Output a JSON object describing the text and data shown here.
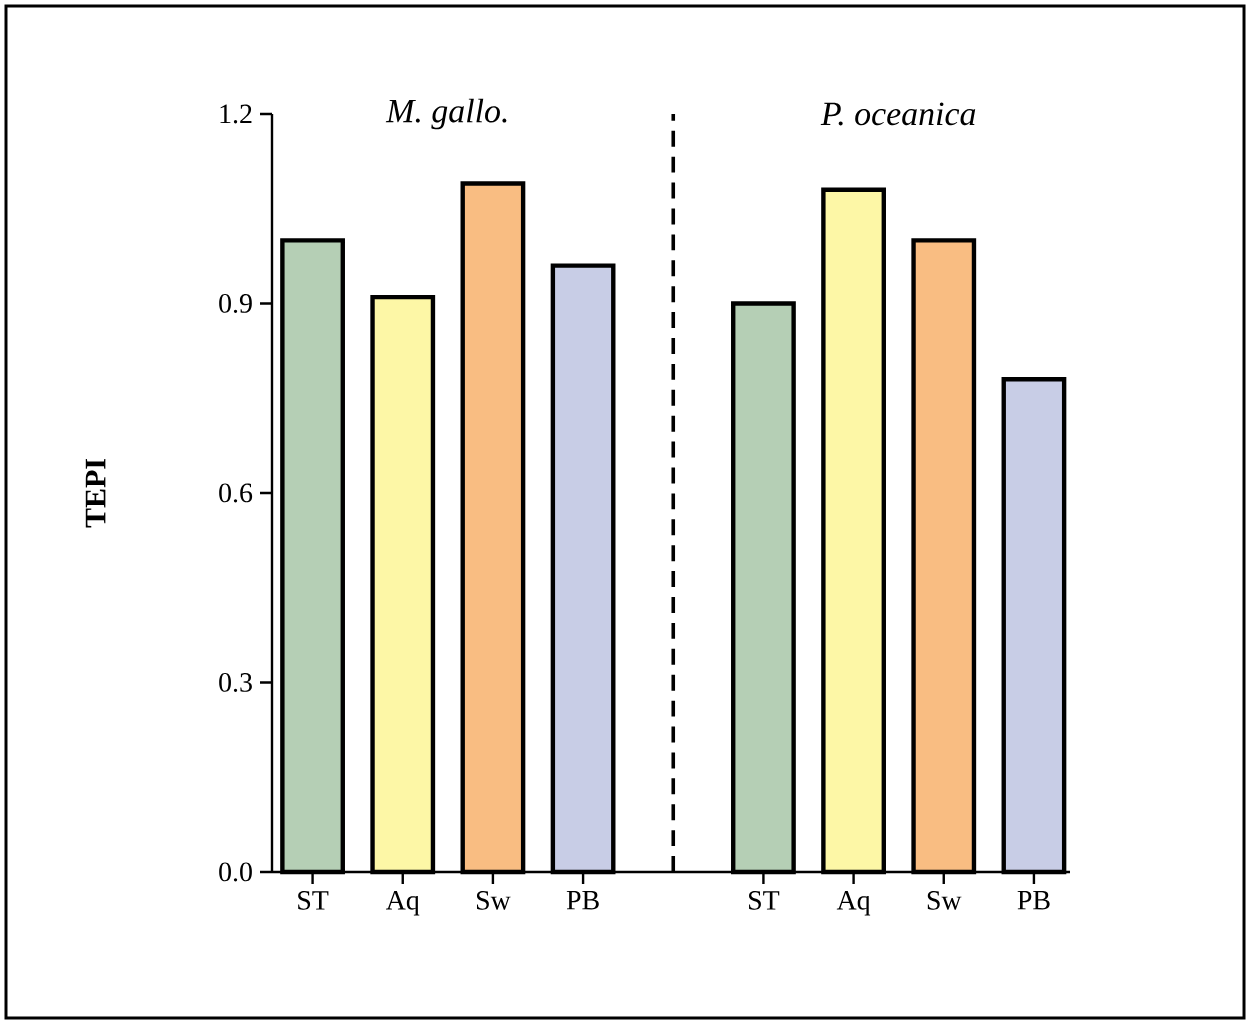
{
  "chart_data": {
    "type": "bar",
    "ylabel": "TEPI",
    "categories": [
      "ST",
      "Aq",
      "Sw",
      "PB",
      null,
      "ST",
      "Aq",
      "Sw",
      "PB"
    ],
    "values": [
      1.0,
      0.91,
      1.09,
      0.96,
      null,
      0.9,
      1.08,
      1.0,
      0.78
    ],
    "colors": [
      "#b5cfb5",
      "#fdf7a6",
      "#f9bd82",
      "#c8cde6",
      null,
      "#b5cfb5",
      "#fdf7a6",
      "#f9bd82",
      "#c8cde6"
    ],
    "ylim": [
      0,
      1.2
    ],
    "yticks": [
      {
        "value": 0,
        "label": "0.0"
      },
      0.3,
      0.6,
      0.9,
      1.2
    ],
    "annotations": [
      "M. gallo.",
      "P. oceanica"
    ]
  }
}
